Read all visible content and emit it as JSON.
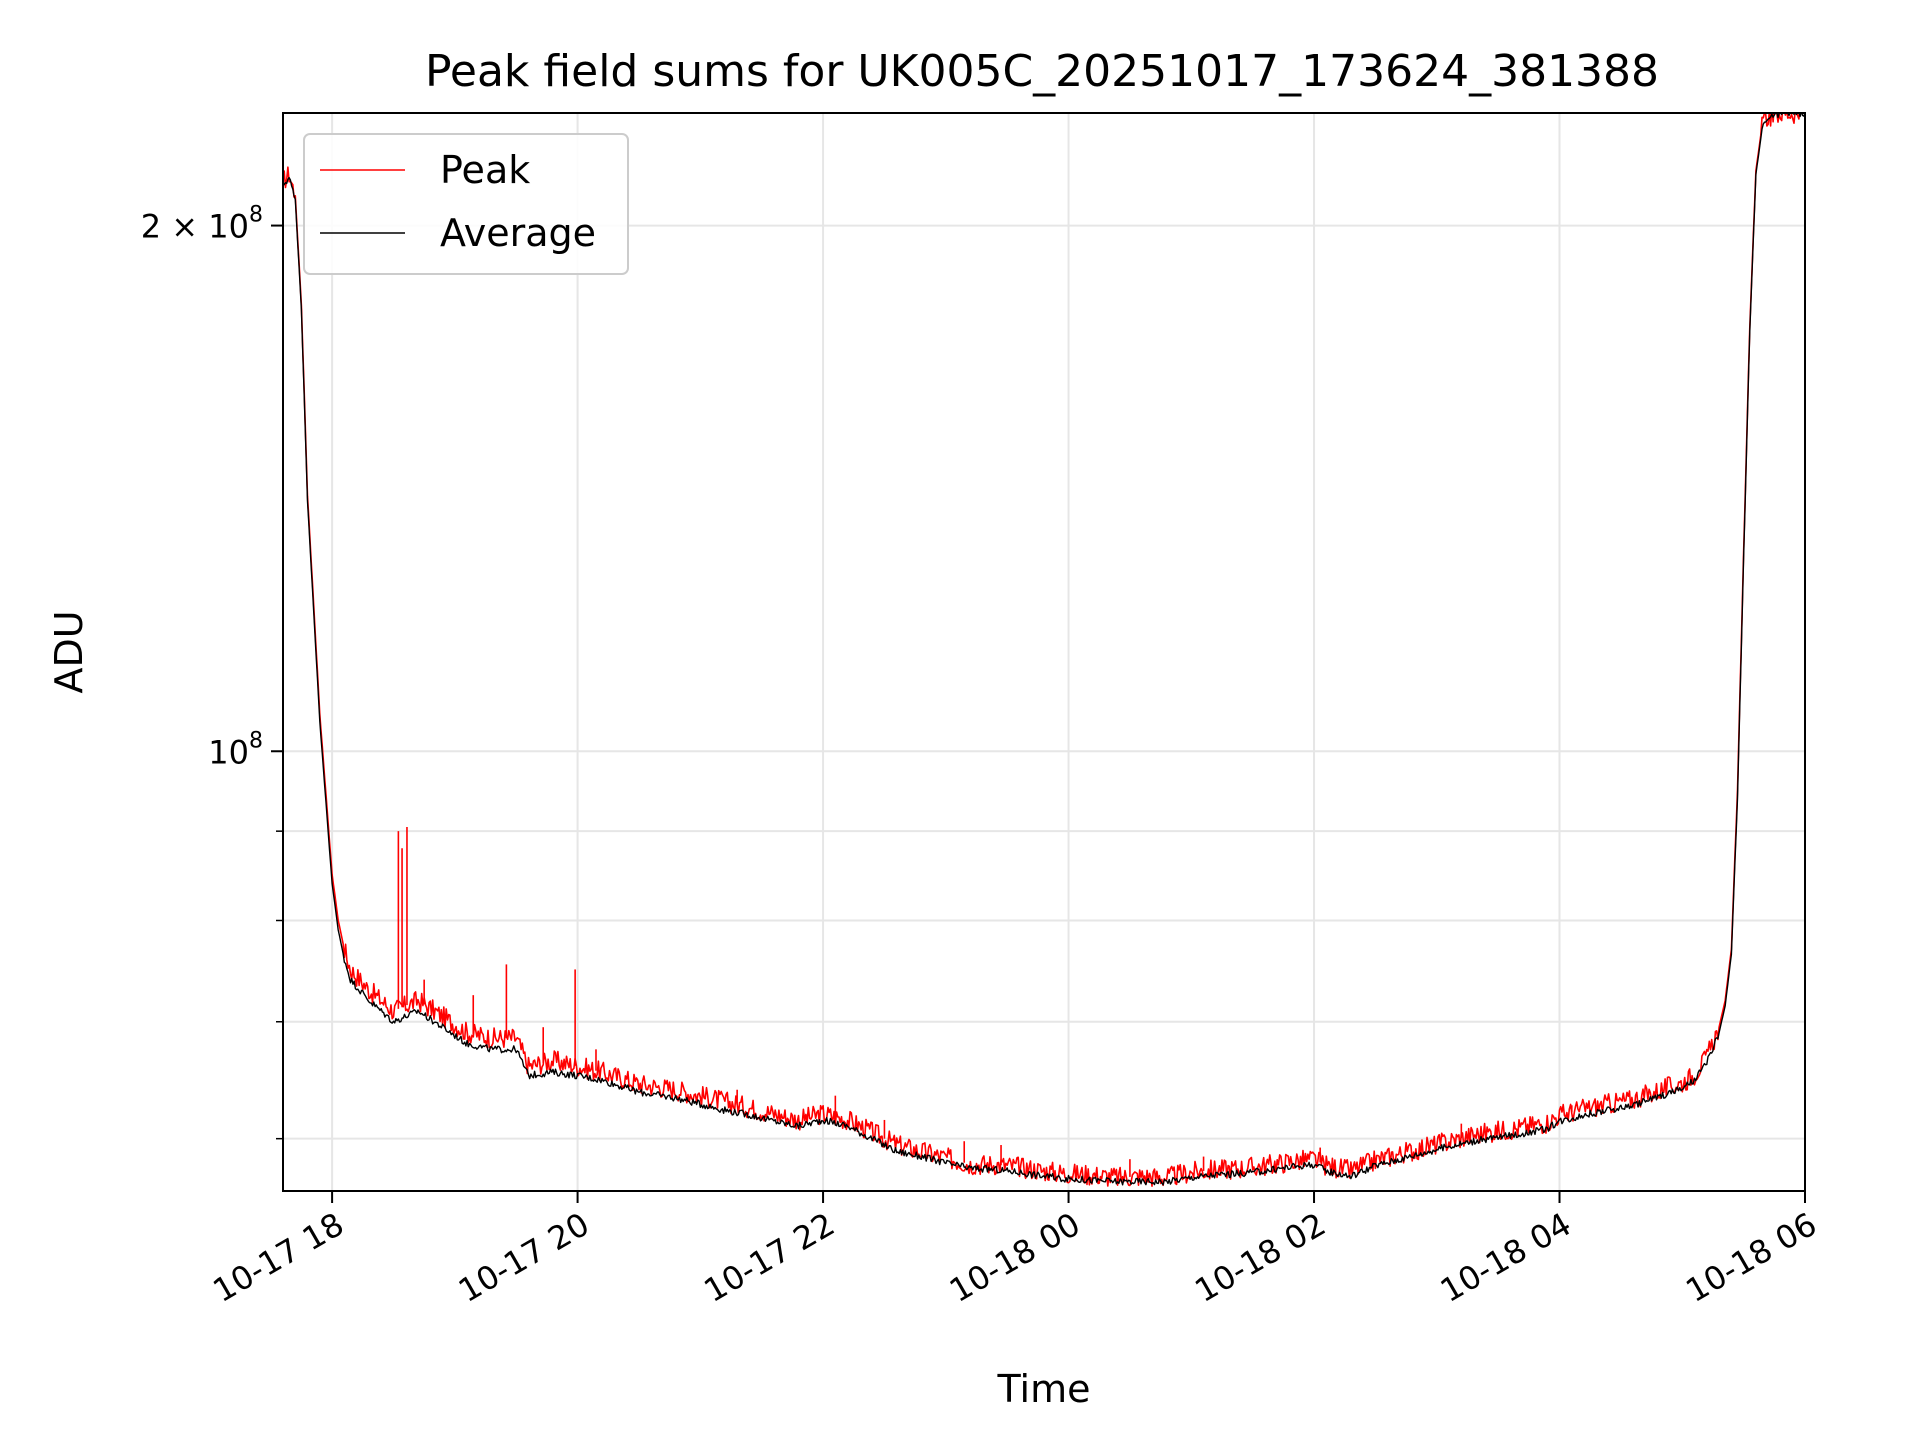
{
  "chart_data": {
    "type": "line",
    "title": "Peak field sums for UK005C_20251017_173624_381388",
    "xlabel": "Time",
    "ylabel": "ADU",
    "yscale": "log",
    "xlim": [
      17.6,
      30.0
    ],
    "ylim": [
      56000000,
      232000000
    ],
    "grid": true,
    "legend_loc": "upper left",
    "x_ticks": [
      {
        "value": 18,
        "label": "10-17 18"
      },
      {
        "value": 20,
        "label": "10-17 20"
      },
      {
        "value": 22,
        "label": "10-17 22"
      },
      {
        "value": 24,
        "label": "10-18 00"
      },
      {
        "value": 26,
        "label": "10-18 02"
      },
      {
        "value": 28,
        "label": "10-18 04"
      },
      {
        "value": 30,
        "label": "10-18 06"
      }
    ],
    "y_major_ticks": [
      {
        "value": 100000000,
        "base": "10",
        "exp": "8",
        "coef": ""
      },
      {
        "value": 200000000,
        "base": "10",
        "exp": "8",
        "coef": "2 × "
      }
    ],
    "y_minor_ticks": [
      60000000,
      70000000,
      80000000,
      90000000
    ],
    "x_unit_note": "hours since 2025-10-17 00:00",
    "series": [
      {
        "name": "Peak",
        "color": "#ff0000",
        "x": [
          17.6,
          17.65,
          17.7,
          17.75,
          17.8,
          17.9,
          18.0,
          18.05,
          18.1,
          18.15,
          18.3,
          18.5,
          18.7,
          18.9,
          19.1,
          19.3,
          19.5,
          19.6,
          19.8,
          20.0,
          20.2,
          20.5,
          20.8,
          21.0,
          21.2,
          21.4,
          21.6,
          21.8,
          22.0,
          22.2,
          22.4,
          22.6,
          22.8,
          23.0,
          23.2,
          23.4,
          23.6,
          23.8,
          24.0,
          24.2,
          24.4,
          24.6,
          24.8,
          25.0,
          25.2,
          25.4,
          25.6,
          25.8,
          26.0,
          26.1,
          26.3,
          26.5,
          26.7,
          26.9,
          27.1,
          27.3,
          27.5,
          27.7,
          27.9,
          28.0,
          28.2,
          28.4,
          28.6,
          28.8,
          29.0,
          29.1,
          29.2,
          29.3,
          29.35,
          29.4,
          29.45,
          29.5,
          29.55,
          29.6,
          29.65,
          29.7,
          29.8,
          29.9,
          30.0
        ],
        "y": [
          212000000,
          214000000,
          208000000,
          180000000,
          140000000,
          105000000,
          85000000,
          80000000,
          77000000,
          75000000,
          73000000,
          71000000,
          72000000,
          70500000,
          69000000,
          68500000,
          68500000,
          66000000,
          66500000,
          66000000,
          65500000,
          64500000,
          64000000,
          63500000,
          63000000,
          62500000,
          62000000,
          61500000,
          62000000,
          61500000,
          60500000,
          59500000,
          59000000,
          58500000,
          58000000,
          58000000,
          57800000,
          57500000,
          57300000,
          57200000,
          57000000,
          57100000,
          57000000,
          57400000,
          57600000,
          57700000,
          57900000,
          58200000,
          58400000,
          57900000,
          57500000,
          58300000,
          58800000,
          59300000,
          59800000,
          60300000,
          60600000,
          60900000,
          61300000,
          61900000,
          62400000,
          62800000,
          63200000,
          63900000,
          64600000,
          65300000,
          66800000,
          69500000,
          72000000,
          77000000,
          95000000,
          130000000,
          175000000,
          215000000,
          228000000,
          231000000,
          232000000,
          232000000,
          232000000
        ]
      },
      {
        "name": "Average",
        "color": "#000000",
        "x": [
          17.6,
          17.65,
          17.7,
          17.75,
          17.8,
          17.9,
          18.0,
          18.05,
          18.1,
          18.15,
          18.3,
          18.5,
          18.7,
          18.9,
          19.1,
          19.3,
          19.5,
          19.6,
          19.8,
          20.0,
          20.2,
          20.5,
          20.8,
          21.0,
          21.2,
          21.4,
          21.6,
          21.8,
          22.0,
          22.2,
          22.4,
          22.6,
          22.8,
          23.0,
          23.2,
          23.4,
          23.6,
          23.8,
          24.0,
          24.2,
          24.4,
          24.6,
          24.8,
          25.0,
          25.2,
          25.4,
          25.6,
          25.8,
          26.0,
          26.1,
          26.3,
          26.5,
          26.7,
          26.9,
          27.1,
          27.3,
          27.5,
          27.7,
          27.9,
          28.0,
          28.2,
          28.4,
          28.6,
          28.8,
          29.0,
          29.1,
          29.2,
          29.3,
          29.35,
          29.4,
          29.45,
          29.5,
          29.55,
          29.6,
          29.65,
          29.7,
          29.8,
          29.9,
          30.0
        ],
        "y": [
          211000000,
          213000000,
          207000000,
          179000000,
          139000000,
          104000000,
          84000000,
          79000000,
          76000000,
          74000000,
          72000000,
          70000000,
          71000000,
          69500000,
          68000000,
          67500000,
          67500000,
          65200000,
          65500000,
          65200000,
          64800000,
          63800000,
          63300000,
          62800000,
          62300000,
          61900000,
          61400000,
          61000000,
          61500000,
          61000000,
          60000000,
          59000000,
          58600000,
          58100000,
          57700000,
          57600000,
          57400000,
          57100000,
          56900000,
          56800000,
          56700000,
          56700000,
          56700000,
          57000000,
          57200000,
          57300000,
          57500000,
          57800000,
          58000000,
          57500000,
          57100000,
          57900000,
          58400000,
          58900000,
          59400000,
          59800000,
          60100000,
          60400000,
          60800000,
          61400000,
          61900000,
          62300000,
          62700000,
          63400000,
          64100000,
          64800000,
          66300000,
          69000000,
          71500000,
          76500000,
          94000000,
          129000000,
          174000000,
          214000000,
          227000000,
          230500000,
          231800000,
          232000000,
          232000000
        ]
      }
    ],
    "spikes": [
      {
        "x": 18.54,
        "y": 90000000
      },
      {
        "x": 18.57,
        "y": 88000000
      },
      {
        "x": 18.61,
        "y": 90500000
      },
      {
        "x": 18.75,
        "y": 74000000
      },
      {
        "x": 19.15,
        "y": 72500000
      },
      {
        "x": 19.42,
        "y": 75500000
      },
      {
        "x": 19.72,
        "y": 69500000
      },
      {
        "x": 19.98,
        "y": 75000000
      },
      {
        "x": 20.15,
        "y": 67500000
      },
      {
        "x": 21.3,
        "y": 64000000
      },
      {
        "x": 22.1,
        "y": 63500000
      },
      {
        "x": 22.5,
        "y": 61500000
      },
      {
        "x": 23.15,
        "y": 59800000
      },
      {
        "x": 23.45,
        "y": 59500000
      },
      {
        "x": 24.5,
        "y": 58400000
      },
      {
        "x": 25.1,
        "y": 58600000
      },
      {
        "x": 26.05,
        "y": 59300000
      },
      {
        "x": 27.2,
        "y": 61200000
      },
      {
        "x": 28.1,
        "y": 62700000
      }
    ],
    "legend": [
      {
        "label": "Peak",
        "color": "#ff0000"
      },
      {
        "label": "Average",
        "color": "#000000"
      }
    ]
  }
}
